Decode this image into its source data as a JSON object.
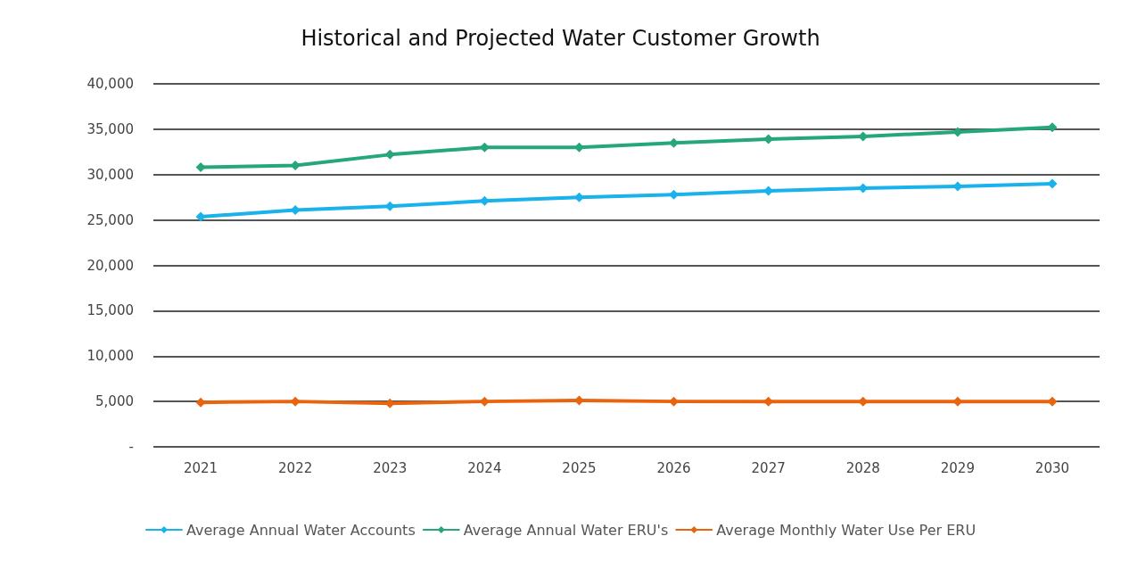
{
  "chart_data": {
    "type": "line",
    "title": "Historical and Projected Water Customer Growth",
    "categories": [
      "2021",
      "2022",
      "2023",
      "2024",
      "2025",
      "2026",
      "2027",
      "2028",
      "2029",
      "2030"
    ],
    "series": [
      {
        "name": "Average Annual Water Accounts",
        "color": "#19b2ea",
        "values": [
          25350,
          26100,
          26500,
          27100,
          27500,
          27800,
          28200,
          28500,
          28700,
          29000
        ]
      },
      {
        "name": "Average Annual Water ERU's",
        "color": "#25a77a",
        "values": [
          30800,
          31000,
          32200,
          33000,
          33000,
          33500,
          33900,
          34200,
          34700,
          35200
        ]
      },
      {
        "name": "Average Monthly Water Use Per ERU",
        "color": "#e8640e",
        "values": [
          4900,
          5000,
          4800,
          5000,
          5100,
          5000,
          5000,
          5000,
          5000,
          5000
        ]
      }
    ],
    "ylim": [
      0,
      40000
    ],
    "yticks": [
      {
        "value": 0,
        "label": "-"
      },
      {
        "value": 5000,
        "label": "5,000"
      },
      {
        "value": 10000,
        "label": "10,000"
      },
      {
        "value": 15000,
        "label": "15,000"
      },
      {
        "value": 20000,
        "label": "20,000"
      },
      {
        "value": 25000,
        "label": "25,000"
      },
      {
        "value": 30000,
        "label": "30,000"
      },
      {
        "value": 35000,
        "label": "35,000"
      },
      {
        "value": 40000,
        "label": "40,000"
      }
    ],
    "grid": "y",
    "legend": "bottom",
    "marker": "diamond",
    "line_style": "solid"
  }
}
